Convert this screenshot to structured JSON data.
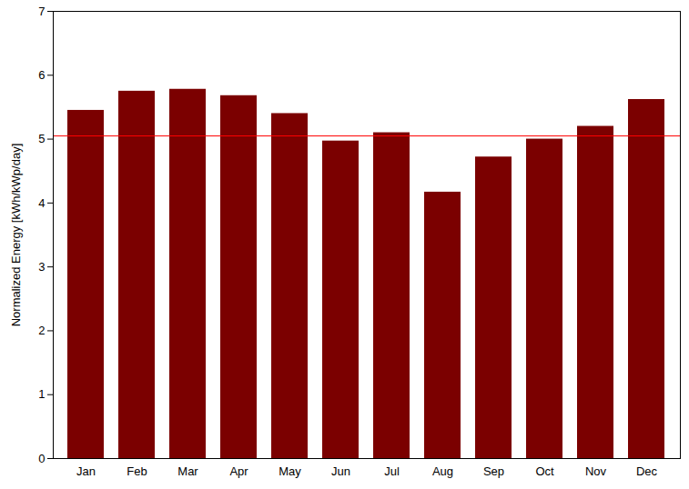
{
  "chart_data": {
    "type": "bar",
    "y_label": "Normalized Energy [kWh/kWp/day]",
    "categories": [
      "Jan",
      "Feb",
      "Mar",
      "Apr",
      "May",
      "Jun",
      "Jul",
      "Aug",
      "Sep",
      "Oct",
      "Nov",
      "Dec"
    ],
    "values": [
      5.45,
      5.75,
      5.78,
      5.68,
      5.4,
      4.97,
      5.1,
      4.17,
      4.72,
      5.0,
      5.2,
      5.62
    ],
    "color": "#7b0000",
    "reference_line": {
      "value": 5.05,
      "color": "#ff0000"
    },
    "ylim": [
      0,
      7
    ],
    "yticks": [
      0,
      1,
      2,
      3,
      4,
      5,
      6,
      7
    ],
    "grid": false
  }
}
